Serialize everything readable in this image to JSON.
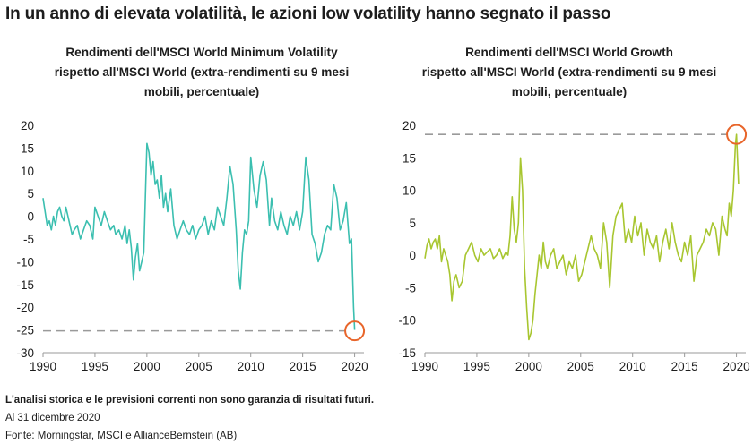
{
  "title": "In un anno di elevata volatilità, le azioni low volatility hanno segnato il passo",
  "footer": {
    "disclaimer": "L'analisi storica e le previsioni correnti non sono garanzia di risultati futuri.",
    "date": "Al 31 dicembre 2020",
    "source": "Fonte: Morningstar, MSCI e AllianceBernstein (AB)"
  },
  "colors": {
    "left_line": "#3bbfb0",
    "right_line": "#a8c630",
    "reference": "#9a9a9a",
    "marker": "#e8652a",
    "axis": "#9a9a9a"
  },
  "chart_data": [
    {
      "type": "line",
      "title": "Rendimenti dell'MSCI World Minimum Volatility rispetto all'MSCI World (extra-rendimenti su 9 mesi mobili, percentuale)",
      "title_lines": [
        "Rendimenti dell'MSCI World Minimum Volatility",
        "rispetto all'MSCI World (extra-rendimenti su 9 mesi",
        "mobili, percentuale)"
      ],
      "xlim": [
        1990,
        2020.9
      ],
      "ylim": [
        -30,
        20
      ],
      "xticks": [
        1990,
        1995,
        2000,
        2005,
        2010,
        2015,
        2020
      ],
      "yticks": [
        20,
        15,
        10,
        5,
        0,
        -5,
        -10,
        -15,
        -20,
        -25,
        -30
      ],
      "reference_line": -25.2,
      "highlight_point": [
        2020,
        -25.2
      ],
      "series": [
        {
          "x": [
            1990.0,
            1990.2,
            1990.4,
            1990.6,
            1990.8,
            1991.0,
            1991.2,
            1991.4,
            1991.6,
            1991.8,
            1992.0,
            1992.2,
            1992.4,
            1992.6,
            1992.8,
            1993.0,
            1993.3,
            1993.6,
            1993.9,
            1994.2,
            1994.5,
            1994.8,
            1995.0,
            1995.3,
            1995.6,
            1995.9,
            1996.2,
            1996.5,
            1996.8,
            1997.0,
            1997.3,
            1997.6,
            1997.9,
            1998.1,
            1998.3,
            1998.5,
            1998.7,
            1998.9,
            1999.1,
            1999.3,
            1999.5,
            1999.7,
            1999.9,
            2000.0,
            2000.2,
            2000.4,
            2000.6,
            2000.8,
            2001.0,
            2001.2,
            2001.4,
            2001.6,
            2001.8,
            2002.0,
            2002.3,
            2002.6,
            2002.9,
            2003.2,
            2003.5,
            2003.8,
            2004.1,
            2004.4,
            2004.7,
            2005.0,
            2005.3,
            2005.6,
            2005.9,
            2006.2,
            2006.5,
            2006.8,
            2007.1,
            2007.4,
            2007.7,
            2008.0,
            2008.3,
            2008.6,
            2008.8,
            2009.0,
            2009.2,
            2009.4,
            2009.6,
            2009.8,
            2010.0,
            2010.3,
            2010.6,
            2010.9,
            2011.2,
            2011.5,
            2011.8,
            2012.0,
            2012.3,
            2012.6,
            2012.9,
            2013.2,
            2013.5,
            2013.8,
            2014.1,
            2014.4,
            2014.7,
            2015.0,
            2015.3,
            2015.6,
            2015.9,
            2016.2,
            2016.5,
            2016.8,
            2017.1,
            2017.4,
            2017.7,
            2018.0,
            2018.3,
            2018.6,
            2018.9,
            2019.2,
            2019.5,
            2019.7,
            2019.9,
            2020.0
          ],
          "values": [
            4,
            1,
            -2,
            -1,
            -3,
            0,
            -2,
            1,
            2,
            0,
            -1,
            2,
            0,
            -2,
            -4,
            -3,
            -2,
            -5,
            -3,
            -1,
            -2,
            -5,
            2,
            0,
            -2,
            1,
            -1,
            -3,
            -2,
            -4,
            -3,
            -5,
            -2,
            -6,
            -3,
            -7,
            -14,
            -9,
            -6,
            -12,
            -10,
            -8,
            8,
            16,
            14,
            9,
            12,
            7,
            8,
            4,
            9,
            2,
            5,
            1,
            6,
            -2,
            -5,
            -3,
            -1,
            -3,
            -4,
            -2,
            -5,
            -3,
            -2,
            0,
            -4,
            -1,
            -3,
            2,
            0,
            -2,
            4,
            11,
            7,
            -3,
            -12,
            -16,
            -8,
            -3,
            -4,
            -1,
            13,
            6,
            2,
            9,
            12,
            8,
            -2,
            4,
            -1,
            -3,
            1,
            -2,
            -4,
            0,
            -2,
            1,
            -3,
            1,
            13,
            8,
            -4,
            -6,
            -10,
            -8,
            -4,
            -2,
            -3,
            7,
            4,
            -3,
            -1,
            3,
            -6,
            -5,
            -20,
            -25
          ]
        }
      ]
    },
    {
      "type": "line",
      "title": "Rendimenti dell'MSCI World Growth rispetto all'MSCI World (extra-rendimenti su 9 mesi mobili, percentuale)",
      "title_lines": [
        "Rendimenti dell'MSCI World Growth",
        "rispetto all'MSCI World (extra-rendimenti su 9 mesi",
        "mobili, percentuale)"
      ],
      "xlim": [
        1990,
        2020.9
      ],
      "ylim": [
        -15,
        20
      ],
      "xticks": [
        1990,
        1995,
        2000,
        2005,
        2010,
        2015,
        2020
      ],
      "yticks": [
        20,
        15,
        10,
        5,
        0,
        -5,
        -10,
        -15
      ],
      "reference_line": 18.6,
      "highlight_point": [
        2020,
        18.6
      ],
      "series": [
        {
          "x": [
            1990.0,
            1990.2,
            1990.4,
            1990.6,
            1990.8,
            1991.0,
            1991.2,
            1991.4,
            1991.6,
            1991.8,
            1992.0,
            1992.2,
            1992.4,
            1992.6,
            1992.8,
            1993.0,
            1993.3,
            1993.6,
            1993.9,
            1994.2,
            1994.5,
            1994.8,
            1995.1,
            1995.4,
            1995.7,
            1996.0,
            1996.3,
            1996.6,
            1996.9,
            1997.2,
            1997.5,
            1997.8,
            1998.0,
            1998.2,
            1998.4,
            1998.6,
            1998.8,
            1999.0,
            1999.2,
            1999.4,
            1999.6,
            1999.8,
            2000.0,
            2000.2,
            2000.4,
            2000.6,
            2000.8,
            2001.0,
            2001.2,
            2001.4,
            2001.6,
            2001.8,
            2002.1,
            2002.4,
            2002.7,
            2003.0,
            2003.3,
            2003.6,
            2003.9,
            2004.2,
            2004.5,
            2004.8,
            2005.1,
            2005.4,
            2005.7,
            2006.0,
            2006.3,
            2006.6,
            2006.9,
            2007.2,
            2007.5,
            2007.8,
            2008.1,
            2008.4,
            2008.7,
            2009.0,
            2009.3,
            2009.6,
            2009.9,
            2010.2,
            2010.5,
            2010.8,
            2011.1,
            2011.4,
            2011.7,
            2012.0,
            2012.3,
            2012.6,
            2012.9,
            2013.2,
            2013.5,
            2013.8,
            2014.1,
            2014.4,
            2014.7,
            2015.0,
            2015.3,
            2015.6,
            2015.9,
            2016.2,
            2016.5,
            2016.8,
            2017.1,
            2017.4,
            2017.7,
            2018.0,
            2018.3,
            2018.6,
            2018.9,
            2019.1,
            2019.3,
            2019.5,
            2019.7,
            2019.9,
            2020.0,
            2020.2
          ],
          "values": [
            -0.5,
            1.5,
            2.5,
            1,
            2,
            2.5,
            1,
            3,
            -1,
            1,
            0,
            -1,
            -3,
            -7,
            -4,
            -3,
            -5,
            -4,
            0,
            1,
            2,
            0,
            -1,
            1,
            0,
            0.5,
            1,
            -0.5,
            0,
            1,
            -0.5,
            0.5,
            0,
            3,
            9,
            4,
            2,
            5,
            15,
            10,
            -2,
            -8,
            -13,
            -12,
            -10,
            -6,
            -3,
            0,
            -2,
            2,
            -1,
            -2,
            0,
            1,
            -2,
            -1,
            0,
            -3,
            -1,
            -2,
            0,
            -4,
            -3,
            -1,
            1,
            3,
            1,
            0,
            -2,
            5,
            2,
            -5,
            3,
            6,
            7,
            8,
            2,
            4,
            2,
            6,
            3,
            5,
            0,
            4,
            2,
            1,
            3,
            -1,
            2,
            4,
            1,
            5,
            2,
            0,
            -1,
            2,
            0,
            3,
            -4,
            0,
            1,
            2,
            4,
            3,
            5,
            4,
            0,
            6,
            4,
            3,
            8,
            6,
            10,
            17,
            18.6,
            11
          ]
        }
      ]
    }
  ]
}
